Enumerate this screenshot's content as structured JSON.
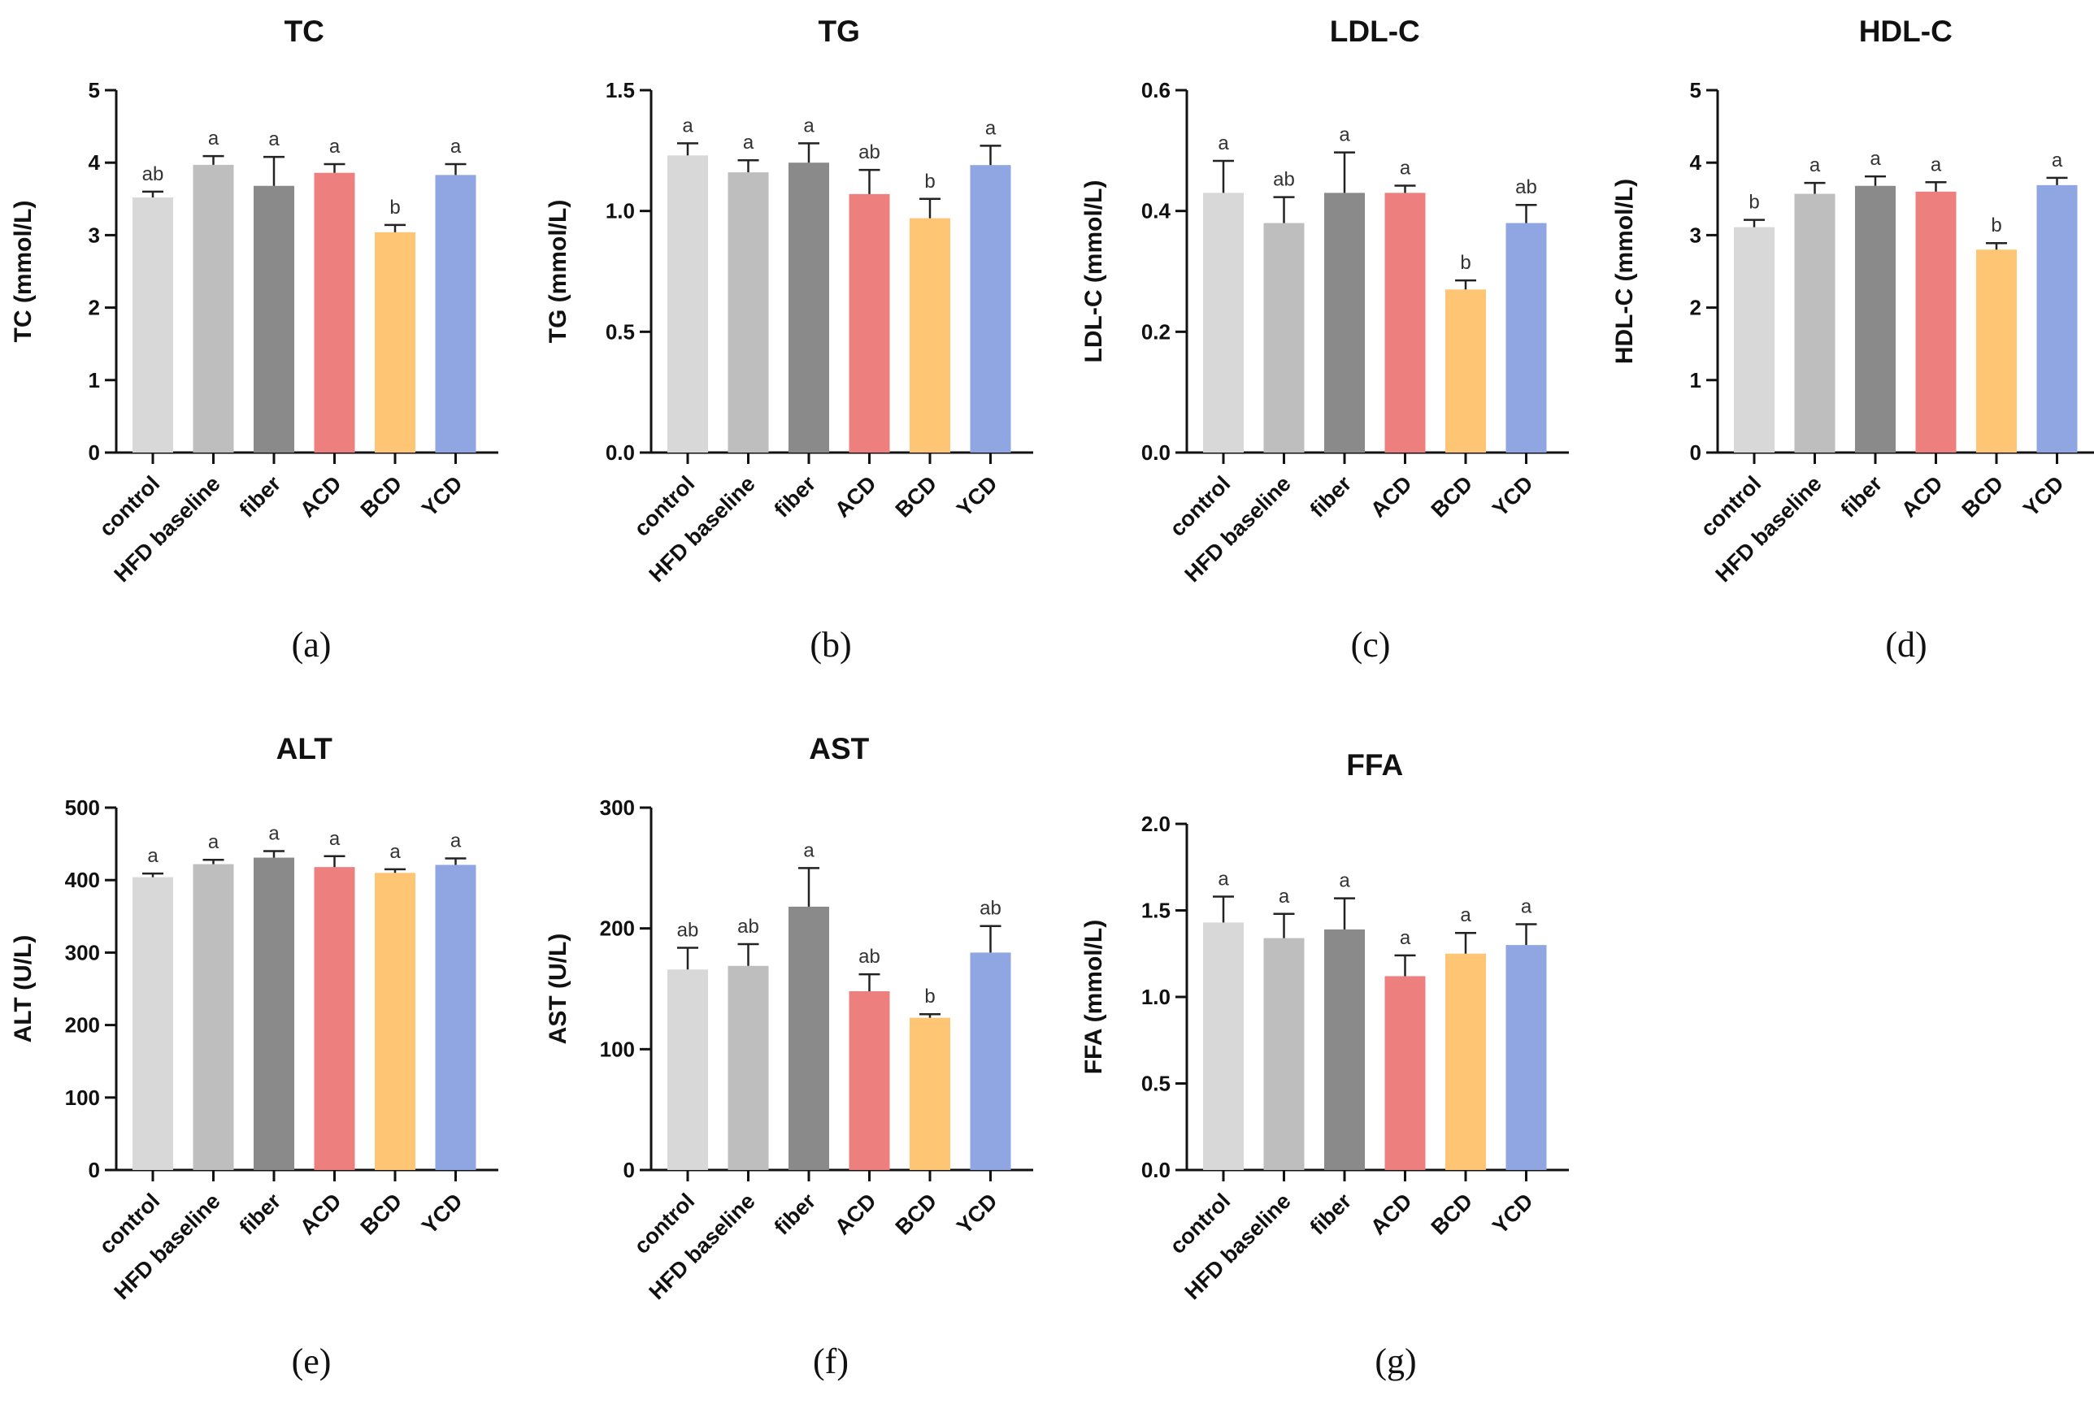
{
  "figure": {
    "categories": [
      "control",
      "HFD baseline",
      "fiber",
      "ACD",
      "BCD",
      "YCD"
    ],
    "bar_colors": [
      "#d8d8d8",
      "#bebebe",
      "#8a8a8a",
      "#ee7f7f",
      "#fec574",
      "#8fa6e3"
    ]
  },
  "chart_data": [
    {
      "id": "tc",
      "type": "bar",
      "caption": "(a)",
      "title": "TC",
      "xlabel": "",
      "ylabel": "TC (mmol/L)",
      "ylim": [
        0,
        5
      ],
      "yticks": [
        0,
        1,
        2,
        3,
        4,
        5
      ],
      "ytick_labels": [
        "0",
        "1",
        "2",
        "3",
        "4",
        "5"
      ],
      "categories": [
        "control",
        "HFD baseline",
        "fiber",
        "ACD",
        "BCD",
        "YCD"
      ],
      "values": [
        3.52,
        3.97,
        3.68,
        3.86,
        3.04,
        3.83
      ],
      "errors": [
        0.08,
        0.12,
        0.4,
        0.12,
        0.1,
        0.15
      ],
      "significance": [
        "ab",
        "a",
        "a",
        "a",
        "b",
        "a"
      ]
    },
    {
      "id": "tg",
      "type": "bar",
      "caption": "(b)",
      "title": "TG",
      "xlabel": "",
      "ylabel": "TG (mmol/L)",
      "ylim": [
        0,
        1.5
      ],
      "yticks": [
        0,
        0.5,
        1.0,
        1.5
      ],
      "ytick_labels": [
        "0.0",
        "0.5",
        "1.0",
        "1.5"
      ],
      "categories": [
        "control",
        "HFD baseline",
        "fiber",
        "ACD",
        "BCD",
        "YCD"
      ],
      "values": [
        1.23,
        1.16,
        1.2,
        1.07,
        0.97,
        1.19
      ],
      "errors": [
        0.05,
        0.05,
        0.08,
        0.1,
        0.08,
        0.08
      ],
      "significance": [
        "a",
        "a",
        "a",
        "ab",
        "b",
        "a"
      ]
    },
    {
      "id": "ldl",
      "type": "bar",
      "caption": "(c)",
      "title": "LDL-C",
      "xlabel": "",
      "ylabel": "LDL-C (mmol/L)",
      "ylim": [
        0,
        0.6
      ],
      "yticks": [
        0,
        0.2,
        0.4,
        0.6
      ],
      "ytick_labels": [
        "0.0",
        "0.2",
        "0.4",
        "0.6"
      ],
      "categories": [
        "control",
        "HFD baseline",
        "fiber",
        "ACD",
        "BCD",
        "YCD"
      ],
      "values": [
        0.43,
        0.38,
        0.43,
        0.43,
        0.27,
        0.38
      ],
      "errors": [
        0.053,
        0.043,
        0.067,
        0.012,
        0.015,
        0.03
      ],
      "significance": [
        "a",
        "ab",
        "a",
        "a",
        "b",
        "ab"
      ]
    },
    {
      "id": "hdl",
      "type": "bar",
      "caption": "(d)",
      "title": "HDL-C",
      "xlabel": "",
      "ylabel": "HDL-C (mmol/L)",
      "ylim": [
        0,
        5
      ],
      "yticks": [
        0,
        1,
        2,
        3,
        4,
        5
      ],
      "ytick_labels": [
        "0",
        "1",
        "2",
        "3",
        "4",
        "5"
      ],
      "categories": [
        "control",
        "HFD baseline",
        "fiber",
        "ACD",
        "BCD",
        "YCD"
      ],
      "values": [
        3.11,
        3.57,
        3.68,
        3.6,
        2.8,
        3.69
      ],
      "errors": [
        0.1,
        0.15,
        0.13,
        0.13,
        0.09,
        0.1
      ],
      "significance": [
        "b",
        "a",
        "a",
        "a",
        "b",
        "a"
      ]
    },
    {
      "id": "alt",
      "type": "bar",
      "caption": "(e)",
      "title": "ALT",
      "xlabel": "",
      "ylabel": "ALT (U/L)",
      "ylim": [
        0,
        500
      ],
      "yticks": [
        0,
        100,
        200,
        300,
        400,
        500
      ],
      "ytick_labels": [
        "0",
        "100",
        "200",
        "300",
        "400",
        "500"
      ],
      "categories": [
        "control",
        "HFD baseline",
        "fiber",
        "ACD",
        "BCD",
        "YCD"
      ],
      "values": [
        404,
        422,
        431,
        418,
        410,
        421
      ],
      "errors": [
        5,
        6,
        9,
        15,
        5,
        9
      ],
      "significance": [
        "a",
        "a",
        "a",
        "a",
        "a",
        "a"
      ]
    },
    {
      "id": "ast",
      "type": "bar",
      "caption": "(f)",
      "title": "AST",
      "xlabel": "",
      "ylabel": "AST (U/L)",
      "ylim": [
        0,
        300
      ],
      "yticks": [
        0,
        100,
        200,
        300
      ],
      "ytick_labels": [
        "0",
        "100",
        "200",
        "300"
      ],
      "categories": [
        "control",
        "HFD baseline",
        "fiber",
        "ACD",
        "BCD",
        "YCD"
      ],
      "values": [
        166,
        169,
        218,
        148,
        126,
        180
      ],
      "errors": [
        18,
        18,
        32,
        14,
        3,
        22
      ],
      "significance": [
        "ab",
        "ab",
        "a",
        "ab",
        "b",
        "ab"
      ]
    },
    {
      "id": "ffa",
      "type": "bar",
      "caption": "(g)",
      "title": "FFA",
      "xlabel": "",
      "ylabel": "FFA (mmol/L)",
      "ylim": [
        0,
        2.0
      ],
      "yticks": [
        0,
        0.5,
        1.0,
        1.5,
        2.0
      ],
      "ytick_labels": [
        "0.0",
        "0.5",
        "1.0",
        "1.5",
        "2.0"
      ],
      "categories": [
        "control",
        "HFD baseline",
        "fiber",
        "ACD",
        "BCD",
        "YCD"
      ],
      "values": [
        1.43,
        1.34,
        1.39,
        1.12,
        1.25,
        1.3
      ],
      "errors": [
        0.15,
        0.14,
        0.18,
        0.12,
        0.12,
        0.12
      ],
      "significance": [
        "a",
        "a",
        "a",
        "a",
        "a",
        "a"
      ]
    }
  ]
}
